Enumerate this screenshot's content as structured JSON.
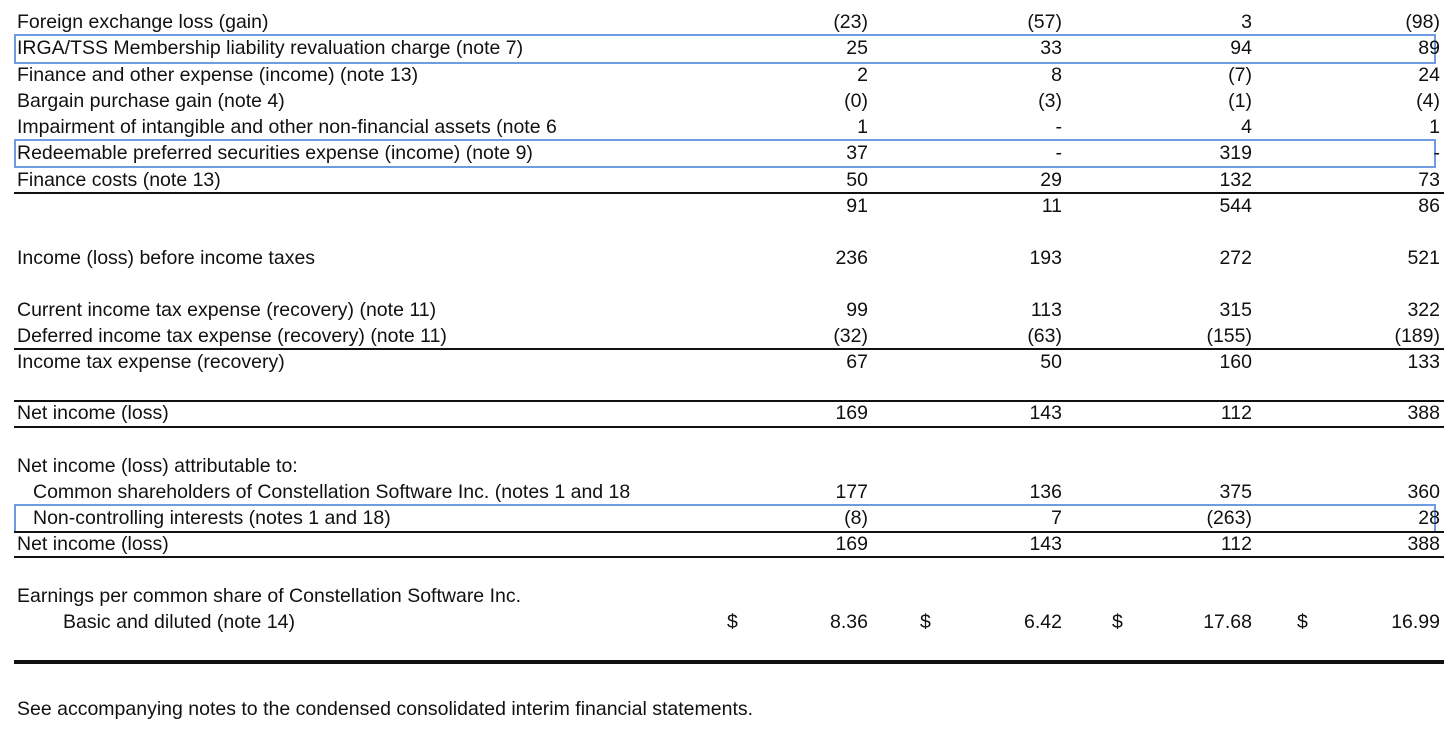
{
  "rows": [
    {
      "label": "Foreign exchange loss (gain)",
      "values": [
        "(23)",
        "(57)",
        "3",
        "(98)"
      ]
    },
    {
      "label": "IRGA/TSS Membership liability revaluation charge (note 7)",
      "values": [
        "25",
        "33",
        "94",
        "89"
      ]
    },
    {
      "label": "Finance and other expense (income) (note 13)",
      "values": [
        "2",
        "8",
        "(7)",
        "24"
      ]
    },
    {
      "label": "Bargain purchase gain (note 4)",
      "values": [
        "(0)",
        "(3)",
        "(1)",
        "(4)"
      ]
    },
    {
      "label": "Impairment of intangible and other non-financial assets (note 6",
      "values": [
        "1",
        "-",
        "4",
        "1"
      ]
    },
    {
      "label": "Redeemable preferred securities expense (income) (note 9)",
      "values": [
        "37",
        "-",
        "319",
        "-"
      ]
    },
    {
      "label": "Finance costs (note 13)",
      "values": [
        "50",
        "29",
        "132",
        "73"
      ]
    },
    {
      "values": [
        "91",
        "11",
        "544",
        "86"
      ]
    },
    {
      "label": "Income (loss) before income taxes",
      "values": [
        "236",
        "193",
        "272",
        "521"
      ]
    },
    {
      "label": "Current income tax expense (recovery) (note 11)",
      "values": [
        "99",
        "113",
        "315",
        "322"
      ]
    },
    {
      "label": "Deferred income tax expense (recovery) (note 11)",
      "values": [
        "(32)",
        "(63)",
        "(155)",
        "(189)"
      ]
    },
    {
      "label": "Income tax expense (recovery)",
      "values": [
        "67",
        "50",
        "160",
        "133"
      ]
    },
    {
      "label": "Net income (loss)",
      "values": [
        "169",
        "143",
        "112",
        "388"
      ]
    },
    {
      "label": "Net income (loss) attributable to:"
    },
    {
      "label": "Common shareholders of Constellation Software Inc. (notes 1 and 18",
      "values": [
        "177",
        "136",
        "375",
        "360"
      ]
    },
    {
      "label": "Non-controlling interests (notes 1 and 18)",
      "values": [
        "(8)",
        "7",
        "(263)",
        "28"
      ]
    },
    {
      "label": "Net income (loss)",
      "values": [
        "169",
        "143",
        "112",
        "388"
      ]
    },
    {
      "label": "Earnings per common share of Constellation Software Inc."
    },
    {
      "label": "Basic and diluted (note 14)",
      "currency": "$",
      "values": [
        "8.36",
        "6.42",
        "17.68",
        "16.99"
      ]
    }
  ],
  "footnote": "See accompanying notes to the condensed consolidated interim financial statements."
}
